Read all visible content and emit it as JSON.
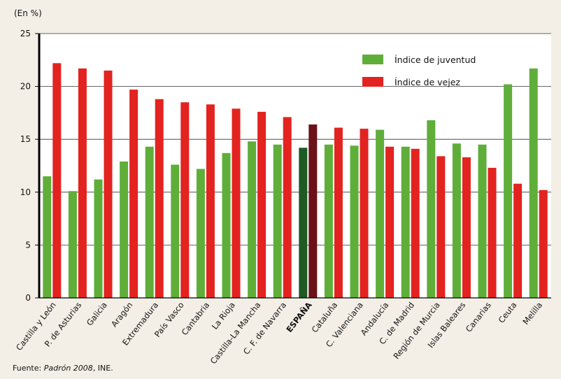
{
  "chart_data": {
    "type": "bar",
    "unit_label": "(En %)",
    "title": "",
    "xlabel": "",
    "ylabel": "",
    "ylim": [
      0,
      25
    ],
    "yticks": [
      0,
      5,
      10,
      15,
      20,
      25
    ],
    "grid": "horizontal",
    "legend_position": "top-right",
    "categories": [
      "Castilla y León",
      "P. de Asturias",
      "Galicia",
      "Aragón",
      "Extremadura",
      "País Vasco",
      "Cantabria",
      "La Rioja",
      "Castilla-La Mancha",
      "C. F. de Navarra",
      "ESPAÑA",
      "Cataluña",
      "C. Valenciana",
      "Andalucía",
      "C. de Madrid",
      "Región de Murcia",
      "Islas Baleares",
      "Canarias",
      "Ceuta",
      "Melilla"
    ],
    "highlight_category": "ESPAÑA",
    "series": [
      {
        "name": "Índice de juventud",
        "color": "#5fae3a",
        "highlight_color": "#1f5a25",
        "values": [
          11.5,
          10.1,
          11.2,
          12.9,
          14.3,
          12.6,
          12.2,
          13.7,
          14.8,
          14.5,
          14.2,
          14.5,
          14.4,
          15.9,
          14.3,
          16.8,
          14.6,
          14.5,
          20.2,
          21.7
        ]
      },
      {
        "name": "Índice de vejez",
        "color": "#e32320",
        "highlight_color": "#6b1118",
        "values": [
          22.2,
          21.7,
          21.5,
          19.7,
          18.8,
          18.5,
          18.3,
          17.9,
          17.6,
          17.1,
          16.4,
          16.1,
          16.0,
          14.3,
          14.1,
          13.4,
          13.3,
          12.3,
          10.8,
          10.2
        ]
      }
    ]
  },
  "source": {
    "prefix": "Fuente: ",
    "italic": "Padrón 2008",
    "suffix": ", INE."
  }
}
